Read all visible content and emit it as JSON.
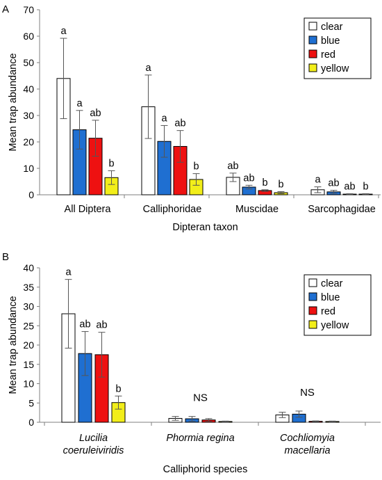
{
  "colors": {
    "clear": "#ffffff",
    "blue": "#1f6fd1",
    "red": "#ee1111",
    "yellow": "#f2ee1a",
    "axis": "#7f7f7f",
    "error": "#555555"
  },
  "chart_data": [
    {
      "type": "bar",
      "panel_label": "A",
      "xlabel": "Dipteran taxon",
      "ylabel": "Mean trap abundance",
      "ylim": [
        0,
        70
      ],
      "yticks": [
        0,
        10,
        20,
        30,
        40,
        50,
        60,
        70
      ],
      "grid": false,
      "legend_position": "top-right",
      "categories": [
        "All Diptera",
        "Calliphoridae",
        "Muscidae",
        "Sarcophagidae"
      ],
      "series": [
        {
          "name": "clear",
          "color_key": "clear",
          "values": [
            44,
            33.3,
            6.6,
            1.9
          ],
          "errors": [
            15.2,
            12,
            1.6,
            1.1
          ],
          "labels": [
            "a",
            "a",
            "ab",
            "a"
          ]
        },
        {
          "name": "blue",
          "color_key": "blue",
          "values": [
            24.6,
            20.2,
            2.9,
            1.1
          ],
          "errors": [
            7.3,
            6,
            0.7,
            0.6
          ],
          "labels": [
            "a",
            "a",
            "ab",
            "ab"
          ]
        },
        {
          "name": "red",
          "color_key": "red",
          "values": [
            21.4,
            18.3,
            1.6,
            0.25
          ],
          "errors": [
            6.8,
            6,
            0.3,
            0.15
          ],
          "labels": [
            "ab",
            "ab",
            "b",
            "ab"
          ]
        },
        {
          "name": "yellow",
          "color_key": "yellow",
          "values": [
            6.5,
            5.8,
            0.8,
            0.25
          ],
          "errors": [
            2.6,
            2.2,
            0.4,
            0.15
          ],
          "labels": [
            "b",
            "b",
            "b",
            "b"
          ]
        }
      ]
    },
    {
      "type": "bar",
      "panel_label": "B",
      "xlabel": "Calliphorid species",
      "ylabel": "Mean trap abundance",
      "ylim": [
        0,
        40
      ],
      "yticks": [
        0,
        5,
        10,
        15,
        20,
        25,
        30,
        35,
        40
      ],
      "grid": false,
      "legend_position": "top-right",
      "categories": [
        [
          "Lucilia",
          "coeruleiviridis"
        ],
        [
          "Phormia regina"
        ],
        [
          "Cochliomyia",
          "macellaria"
        ]
      ],
      "group_annotations": [
        "",
        "NS",
        "NS"
      ],
      "series": [
        {
          "name": "clear",
          "color_key": "clear",
          "values": [
            28.1,
            1,
            1.9
          ],
          "errors": [
            8.9,
            0.5,
            0.7
          ],
          "labels": [
            "a",
            "",
            ""
          ]
        },
        {
          "name": "blue",
          "color_key": "blue",
          "values": [
            17.8,
            0.9,
            2.1
          ],
          "errors": [
            5.7,
            0.6,
            0.8
          ],
          "labels": [
            "ab",
            "",
            ""
          ]
        },
        {
          "name": "red",
          "color_key": "red",
          "values": [
            17.5,
            0.6,
            0.25
          ],
          "errors": [
            5.8,
            0.35,
            0.1
          ],
          "labels": [
            "ab",
            "",
            ""
          ]
        },
        {
          "name": "yellow",
          "color_key": "yellow",
          "values": [
            5.1,
            0.2,
            0.2
          ],
          "errors": [
            1.7,
            0.1,
            0.1
          ],
          "labels": [
            "b",
            "",
            ""
          ]
        }
      ]
    }
  ]
}
